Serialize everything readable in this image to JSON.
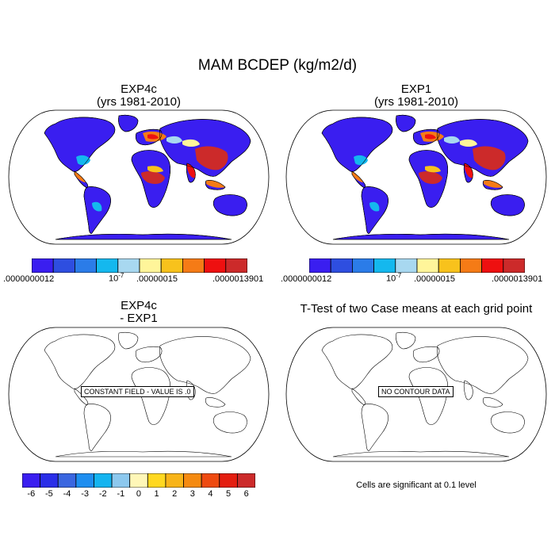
{
  "main_title": "MAM BCDEP (kg/m2/d)",
  "panels": {
    "top_left": {
      "title_line1": "EXP4c",
      "title_line2": "(yrs 1981-2010)"
    },
    "top_right": {
      "title_line1": "EXP1",
      "title_line2": "(yrs 1981-2010)"
    },
    "bottom_left": {
      "title_line1": "EXP4c",
      "title_line2": "- EXP1",
      "message": "CONSTANT FIELD - VALUE IS .0"
    },
    "bottom_right": {
      "title_line1": "T-Test of two Case means at each grid point",
      "message": "NO CONTOUR DATA",
      "note": "Cells are significant at 0.1 level"
    }
  },
  "colorbar_top": {
    "colors": [
      "#3a1ef0",
      "#2e4ee0",
      "#2b7ce8",
      "#14b8ee",
      "#a8d8f0",
      "#fff59a",
      "#f8c21c",
      "#f57b16",
      "#ee1010",
      "#cc2a2a"
    ],
    "labels": {
      "left": ".0000000012",
      "mid_base": "10",
      "mid_exp": "-7",
      "mid2": ".00000015",
      "right": ".0000013901"
    }
  },
  "colorbar_bottom": {
    "colors": [
      "#3a1ef0",
      "#2a2ee8",
      "#3a66e0",
      "#1e8ef0",
      "#14b4f0",
      "#8cc8ee",
      "#fff7b8",
      "#ffd820",
      "#f8b418",
      "#f58a10",
      "#ee4a10",
      "#e41e10",
      "#cc2a2a"
    ],
    "labels": [
      "-6",
      "-5",
      "-4",
      "-3",
      "-2",
      "-1",
      "0",
      "1",
      "2",
      "3",
      "4",
      "5",
      "6"
    ]
  },
  "legend_colors": {
    "low": "#3a1ef0",
    "high": "#cc2a2a",
    "missing": "#ffffff"
  }
}
